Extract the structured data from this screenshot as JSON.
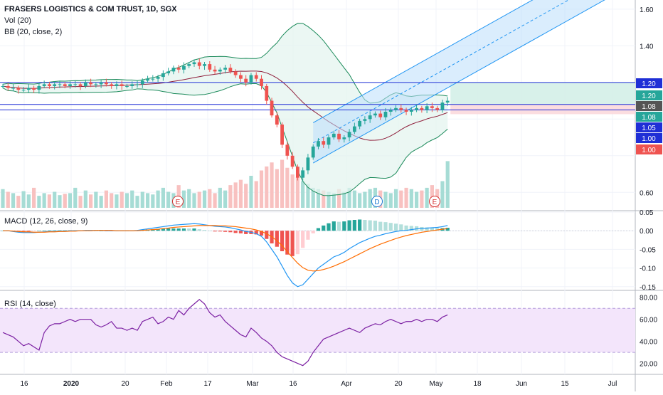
{
  "header": {
    "title": "FRASERS LOGISTICS & COM TRUST, 1D, SGX",
    "indicator_vol": "Vol (20)",
    "indicator_bb": "BB (20, close, 2)"
  },
  "panes": {
    "macd_label": "MACD (12, 26, close, 9)",
    "rsi_label": "RSI (14, close)"
  },
  "colors": {
    "up": "#26a69a",
    "down": "#ef5350",
    "bb_band": "#1b8a5a",
    "bb_mid": "#8e1d3a",
    "hline": "#1f2fd6",
    "channel": "#2196f3",
    "macd_line": "#2196f3",
    "signal_line": "#ff6d00",
    "rsi_line": "#7b1fa2",
    "rsi_fill": "#f3e5fb"
  },
  "chart_data": [
    {
      "type": "candlestick",
      "pane": "price",
      "title": "FRASERS LOGISTICS & COM TRUST, 1D, SGX",
      "y_ticks": [
        "1.60",
        "1.40",
        "0.60"
      ],
      "ylim": [
        0.5,
        1.65
      ],
      "x_ticks": [
        "16",
        "2020",
        "20",
        "Feb",
        "17",
        "Mar",
        "16",
        "Apr",
        "20",
        "May",
        "18",
        "Jun",
        "15",
        "Jul"
      ],
      "horizontal_lines": [
        1.2,
        1.08,
        1.05
      ],
      "price_labels": [
        {
          "text": "1.20",
          "bg": "#1f2fd6"
        },
        {
          "text": "1.20",
          "bg": "#26a69a"
        },
        {
          "text": "1.08",
          "bg": "#555555"
        },
        {
          "text": "1.08",
          "bg": "#26a69a"
        },
        {
          "text": "1.05",
          "bg": "#1f2fd6"
        },
        {
          "text": "1.00",
          "bg": "#1f2fd6"
        },
        {
          "text": "1.00",
          "bg": "#ef5350"
        }
      ],
      "event_markers": [
        "E",
        "D",
        "E"
      ],
      "close": [
        1.18,
        1.17,
        1.17,
        1.16,
        1.16,
        1.17,
        1.16,
        1.18,
        1.19,
        1.18,
        1.19,
        1.19,
        1.18,
        1.19,
        1.19,
        1.18,
        1.2,
        1.19,
        1.19,
        1.2,
        1.19,
        1.18,
        1.19,
        1.18,
        1.18,
        1.19,
        1.19,
        1.21,
        1.22,
        1.22,
        1.23,
        1.25,
        1.26,
        1.28,
        1.27,
        1.29,
        1.3,
        1.31,
        1.29,
        1.3,
        1.27,
        1.26,
        1.27,
        1.28,
        1.26,
        1.24,
        1.22,
        1.2,
        1.24,
        1.22,
        1.18,
        1.1,
        1.02,
        0.97,
        0.86,
        0.8,
        0.74,
        0.68,
        0.72,
        0.79,
        0.85,
        0.88,
        0.86,
        0.9,
        0.92,
        0.89,
        0.9,
        0.93,
        0.96,
        0.99,
        1.0,
        1.02,
        1.03,
        1.01,
        1.04,
        1.05,
        1.06,
        1.05,
        1.04,
        1.05,
        1.06,
        1.05,
        1.07,
        1.06,
        1.05,
        1.09,
        1.1
      ],
      "volume": [
        28,
        24,
        22,
        18,
        25,
        20,
        30,
        18,
        22,
        20,
        24,
        19,
        21,
        22,
        30,
        18,
        26,
        20,
        24,
        18,
        26,
        22,
        20,
        24,
        22,
        26,
        18,
        24,
        22,
        20,
        26,
        30,
        24,
        22,
        34,
        26,
        28,
        22,
        24,
        26,
        28,
        22,
        30,
        26,
        34,
        38,
        42,
        36,
        48,
        40,
        56,
        62,
        68,
        58,
        72,
        60,
        50,
        46,
        40,
        36,
        30,
        28,
        26,
        24,
        22,
        28,
        24,
        30,
        26,
        22,
        24,
        28,
        30,
        26,
        24,
        22,
        28,
        26,
        30,
        28,
        24,
        26,
        30,
        34,
        28,
        40,
        70
      ]
    },
    {
      "type": "macd",
      "pane": "macd",
      "title": "MACD (12, 26, close, 9)",
      "y_ticks": [
        "0.05",
        "0.00",
        "-0.05",
        "-0.10",
        "-0.15"
      ],
      "ylim": [
        -0.16,
        0.05
      ],
      "macd": [
        0,
        0,
        -0.002,
        -0.004,
        -0.005,
        -0.005,
        -0.005,
        -0.004,
        -0.003,
        -0.002,
        -0.002,
        -0.001,
        -0.001,
        0,
        0,
        0,
        0.001,
        0.001,
        0.001,
        0.001,
        0,
        0,
        0,
        0,
        0,
        0,
        0.001,
        0.003,
        0.005,
        0.007,
        0.009,
        0.011,
        0.013,
        0.015,
        0.016,
        0.017,
        0.018,
        0.019,
        0.018,
        0.016,
        0.014,
        0.012,
        0.011,
        0.01,
        0.008,
        0.005,
        0.002,
        -0.002,
        -0.004,
        -0.008,
        -0.015,
        -0.03,
        -0.05,
        -0.07,
        -0.095,
        -0.12,
        -0.14,
        -0.15,
        -0.145,
        -0.13,
        -0.115,
        -0.1,
        -0.09,
        -0.08,
        -0.07,
        -0.065,
        -0.058,
        -0.048,
        -0.04,
        -0.032,
        -0.026,
        -0.02,
        -0.015,
        -0.012,
        -0.008,
        -0.005,
        -0.002,
        0,
        0.001,
        0.003,
        0.005,
        0.006,
        0.007,
        0.008,
        0.009,
        0.011,
        0.014
      ],
      "signal": [
        0,
        0,
        -0.001,
        -0.002,
        -0.003,
        -0.003,
        -0.004,
        -0.004,
        -0.004,
        -0.003,
        -0.003,
        -0.002,
        -0.002,
        -0.001,
        -0.001,
        0,
        0,
        0,
        0.001,
        0.001,
        0.001,
        0.001,
        0,
        0,
        0,
        0,
        0,
        0.001,
        0.002,
        0.003,
        0.004,
        0.006,
        0.007,
        0.009,
        0.01,
        0.011,
        0.012,
        0.013,
        0.014,
        0.014,
        0.014,
        0.014,
        0.013,
        0.013,
        0.012,
        0.011,
        0.009,
        0.007,
        0.005,
        0.002,
        -0.002,
        -0.008,
        -0.016,
        -0.027,
        -0.04,
        -0.056,
        -0.072,
        -0.087,
        -0.099,
        -0.106,
        -0.108,
        -0.107,
        -0.104,
        -0.1,
        -0.095,
        -0.089,
        -0.083,
        -0.076,
        -0.069,
        -0.062,
        -0.055,
        -0.048,
        -0.042,
        -0.036,
        -0.031,
        -0.026,
        -0.021,
        -0.017,
        -0.013,
        -0.01,
        -0.007,
        -0.004,
        -0.002,
        0,
        0.002,
        0.004,
        0.006
      ]
    },
    {
      "type": "line",
      "pane": "rsi",
      "title": "RSI (14, close)",
      "y_ticks": [
        "80.00",
        "60.00",
        "40.00",
        "20.00"
      ],
      "ylim": [
        10,
        85
      ],
      "bands": [
        30,
        70
      ],
      "values": [
        48,
        46,
        44,
        40,
        36,
        38,
        35,
        32,
        48,
        54,
        56,
        56,
        58,
        60,
        58,
        60,
        60,
        60,
        55,
        53,
        55,
        58,
        52,
        52,
        50,
        52,
        50,
        58,
        60,
        62,
        56,
        58,
        62,
        60,
        68,
        64,
        70,
        74,
        78,
        74,
        66,
        62,
        64,
        58,
        54,
        50,
        46,
        44,
        52,
        48,
        43,
        40,
        36,
        30,
        26,
        24,
        22,
        20,
        18,
        22,
        30,
        36,
        42,
        44,
        46,
        48,
        50,
        52,
        50,
        48,
        52,
        54,
        56,
        55,
        58,
        60,
        58,
        56,
        58,
        58,
        60,
        58,
        60,
        60,
        58,
        62,
        64
      ]
    }
  ]
}
